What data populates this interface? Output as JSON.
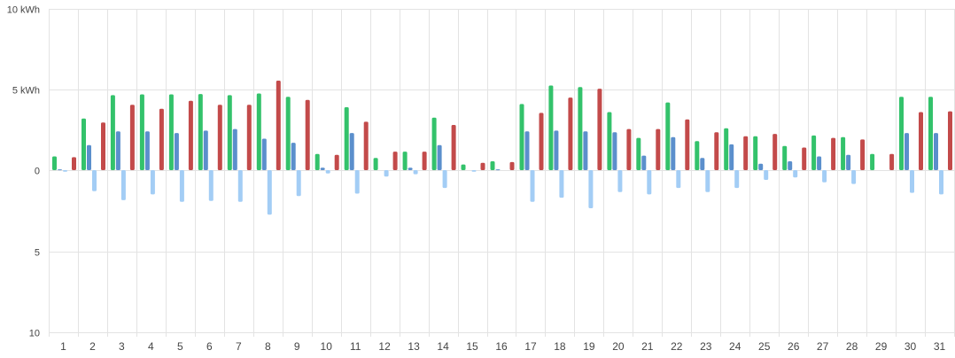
{
  "chart_data": {
    "type": "bar",
    "categories": [
      "1",
      "2",
      "3",
      "4",
      "5",
      "6",
      "7",
      "8",
      "9",
      "10",
      "11",
      "12",
      "13",
      "14",
      "15",
      "16",
      "17",
      "18",
      "19",
      "20",
      "21",
      "22",
      "23",
      "24",
      "25",
      "26",
      "27",
      "28",
      "29",
      "30",
      "31"
    ],
    "ylim": [
      -10,
      10
    ],
    "y_tick_labels": [
      "10 kWh",
      "5 kWh",
      "0",
      "5",
      "10"
    ],
    "y_tick_values": [
      10,
      5,
      0,
      -5,
      -10
    ],
    "grid": true,
    "colors": {
      "green": "#33c26b",
      "blue": "#5b8fcc",
      "light_blue": "#a3cdf5",
      "red": "#c34a4a"
    },
    "series": [
      {
        "color_key": "green",
        "values": [
          0.85,
          3.2,
          4.65,
          4.7,
          4.7,
          4.72,
          4.65,
          4.75,
          4.55,
          1.0,
          3.9,
          0.75,
          1.15,
          3.25,
          0.35,
          0.55,
          4.1,
          5.25,
          5.15,
          3.6,
          2.0,
          4.2,
          1.8,
          2.6,
          2.1,
          1.5,
          2.15,
          2.05,
          1.0,
          4.55,
          4.55
        ]
      },
      {
        "color_key": "blue",
        "values": [
          0.05,
          1.55,
          2.4,
          2.4,
          2.3,
          2.45,
          2.55,
          1.95,
          1.7,
          0.15,
          2.3,
          0,
          0.15,
          1.55,
          0,
          0.05,
          2.4,
          2.45,
          2.4,
          2.35,
          0.9,
          2.05,
          0.75,
          1.6,
          0.4,
          0.55,
          0.85,
          0.95,
          0,
          2.3,
          2.3
        ]
      },
      {
        "color_key": "light_blue",
        "values": [
          -0.1,
          -1.3,
          -1.85,
          -1.5,
          -1.95,
          -1.9,
          -1.95,
          -2.75,
          -1.6,
          -0.2,
          -1.45,
          -0.4,
          -0.25,
          -1.1,
          -0.1,
          0,
          -1.95,
          -1.7,
          -2.35,
          -1.35,
          -1.5,
          -1.1,
          -1.35,
          -1.1,
          -0.6,
          -0.45,
          -0.75,
          -0.85,
          0,
          -1.4,
          -1.5
        ]
      },
      {
        "color_key": "red",
        "values": [
          0.8,
          2.95,
          4.05,
          3.8,
          4.3,
          4.05,
          4.05,
          5.55,
          4.35,
          0.95,
          3.0,
          1.15,
          1.15,
          2.8,
          0.45,
          0.5,
          3.55,
          4.5,
          5.05,
          2.55,
          2.55,
          3.15,
          2.35,
          2.1,
          2.25,
          1.4,
          2.0,
          1.9,
          1.0,
          3.6,
          3.65
        ]
      }
    ]
  }
}
